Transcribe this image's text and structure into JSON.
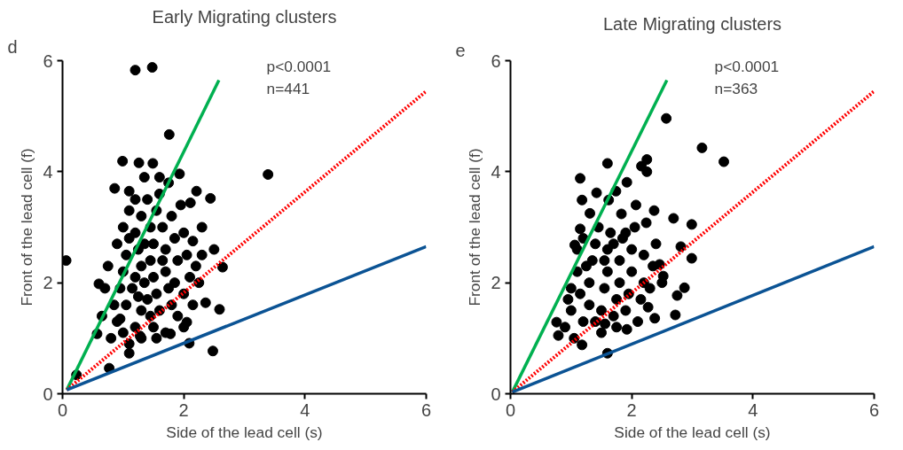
{
  "chart_data": [
    {
      "type": "scatter",
      "title": "Early Migrating clusters",
      "xlabel": "Side of the lead cell (s)",
      "ylabel": "Front of the lead cell (f)",
      "annotations": [
        "d",
        "p<0.0001",
        "n=441"
      ],
      "xlim": [
        0,
        6
      ],
      "ylim": [
        0,
        6
      ],
      "xticks": [
        0,
        2,
        4,
        6
      ],
      "yticks": [
        0,
        2,
        4,
        6
      ],
      "grid": false,
      "series": [
        {
          "color": "#000000",
          "marker": "circle",
          "x": [
            1.2,
            1.48,
            1.76,
            3.39,
            0.99,
            1.26,
            1.49,
            1.93,
            0.86,
            2.21,
            2.44,
            2.11,
            0.06,
            2.64,
            2.5,
            2.36,
            2.59,
            2.48,
            2.09,
            0.77,
            0.6,
            0.23,
            1.55,
            1.28,
            1.78,
            1.1,
            2.05,
            0.57,
            0.8,
            0.9,
            1.0,
            1.1,
            1.2,
            1.3,
            0.85,
            0.95,
            1.0,
            1.05,
            1.1,
            1.0,
            1.1,
            1.2,
            1.3,
            1.2,
            1.25,
            1.3,
            1.35,
            1.4,
            1.45,
            1.5,
            1.6,
            1.55,
            1.5,
            1.45,
            1.5,
            1.45,
            1.55,
            1.6,
            1.65,
            1.7,
            1.7,
            1.75,
            1.8,
            1.9,
            1.85,
            1.9,
            1.85,
            1.8,
            1.95,
            2.0,
            2.05,
            2.1,
            2.0,
            2.15,
            2.2,
            2.3,
            2.25,
            2.3,
            1.15,
            1.2,
            1.35,
            1.4,
            0.9,
            0.75,
            0.7,
            0.65,
            1.05,
            1.3,
            1.7,
            2.0,
            1.6,
            1.75,
            1.35,
            1.1,
            2.15,
            1.65,
            1.25,
            0.95
          ],
          "values": [
            5.83,
            5.88,
            4.67,
            3.95,
            4.19,
            4.16,
            4.15,
            3.96,
            3.7,
            3.65,
            3.52,
            3.44,
            2.4,
            2.28,
            2.6,
            1.64,
            1.52,
            0.77,
            0.91,
            0.46,
            1.98,
            0.34,
            1.0,
            1.04,
            1.08,
            0.73,
            1.29,
            1.08,
            1.0,
            1.3,
            1.1,
            0.9,
            1.2,
            1.5,
            1.6,
            1.9,
            2.2,
            2.5,
            2.8,
            3.0,
            3.3,
            3.5,
            3.2,
            2.9,
            2.6,
            2.3,
            2.0,
            1.7,
            1.4,
            1.2,
            1.5,
            1.8,
            2.1,
            2.4,
            2.7,
            3.0,
            3.3,
            3.6,
            3.0,
            2.6,
            2.2,
            1.9,
            1.6,
            1.4,
            2.0,
            2.4,
            2.8,
            3.2,
            3.4,
            2.9,
            2.5,
            2.1,
            1.8,
            1.6,
            2.3,
            2.5,
            2.0,
            3.0,
            1.9,
            2.1,
            2.7,
            3.5,
            2.7,
            2.3,
            1.9,
            1.4,
            1.6,
            1.0,
            1.1,
            1.2,
            3.9,
            3.8,
            3.9,
            3.65,
            2.75,
            2.4,
            1.75,
            1.35
          ]
        },
        {
          "type": "line",
          "color": "#00b050",
          "line_style": "solid",
          "x": [
            0.07,
            2.58
          ],
          "values": [
            0.07,
            5.65
          ]
        },
        {
          "type": "line",
          "color": "#ff0000",
          "line_style": "dotted",
          "x": [
            0.07,
            6.0
          ],
          "values": [
            0.07,
            5.45
          ]
        },
        {
          "type": "line",
          "color": "#0b5394",
          "line_style": "solid",
          "x": [
            0.07,
            6.0
          ],
          "values": [
            0.07,
            2.65
          ]
        }
      ]
    },
    {
      "type": "scatter",
      "title": "Late Migrating clusters",
      "xlabel": "Side of the lead cell (s)",
      "ylabel": "Front of the lead cell (f)",
      "annotations": [
        "e",
        "p<0.0001",
        "n=363"
      ],
      "xlim": [
        0,
        6
      ],
      "ylim": [
        0,
        6
      ],
      "xticks": [
        0,
        2,
        4,
        6
      ],
      "yticks": [
        0,
        2,
        4,
        6
      ],
      "grid": false,
      "series": [
        {
          "color": "#000000",
          "marker": "circle",
          "x": [
            2.57,
            3.16,
            3.52,
            1.6,
            2.25,
            2.16,
            2.25,
            1.15,
            1.42,
            1.92,
            1.18,
            1.74,
            1.62,
            2.07,
            2.37,
            2.69,
            2.99,
            1.31,
            1.83,
            2.24,
            1.15,
            2.99,
            2.87,
            2.75,
            2.72,
            1.6,
            1.06,
            2.38,
            1.92,
            1.56,
            1.18,
            0.79,
            0.76,
            2.27,
            2.52,
            2.46,
            2.81,
            0.9,
            1.0,
            1.0,
            1.1,
            1.1,
            1.2,
            1.2,
            1.3,
            1.3,
            1.35,
            1.4,
            1.45,
            1.5,
            1.5,
            1.55,
            1.6,
            1.6,
            1.65,
            1.7,
            1.75,
            1.8,
            1.8,
            1.85,
            1.9,
            1.95,
            2.0,
            2.0,
            2.05,
            2.1,
            2.15,
            2.2,
            2.2,
            2.3,
            2.35,
            0.95,
            1.05,
            1.25,
            1.4,
            1.7,
            1.9,
            2.4,
            2.5,
            1.15,
            1.55,
            1.75
          ],
          "values": [
            4.96,
            4.43,
            4.18,
            4.15,
            4.22,
            4.1,
            4.0,
            3.88,
            3.62,
            3.81,
            3.49,
            3.65,
            3.49,
            3.4,
            3.3,
            3.16,
            3.05,
            3.25,
            3.24,
            3.08,
            2.97,
            2.44,
            1.91,
            1.77,
            1.42,
            0.73,
            2.68,
            1.36,
            1.16,
            1.26,
            0.88,
            1.05,
            1.29,
            1.56,
            2.12,
            2.33,
            2.65,
            1.2,
            1.5,
            1.9,
            2.2,
            2.6,
            2.8,
            1.3,
            1.6,
            2.0,
            2.4,
            2.7,
            3.0,
            1.1,
            1.5,
            1.9,
            2.2,
            2.6,
            2.9,
            1.4,
            1.7,
            2.0,
            2.4,
            2.8,
            1.5,
            1.8,
            2.2,
            2.6,
            3.0,
            1.3,
            1.7,
            2.0,
            2.5,
            1.9,
            2.3,
            1.7,
            1.0,
            2.3,
            1.3,
            2.7,
            2.9,
            2.7,
            2.0,
            1.8,
            2.4,
            1.2
          ]
        },
        {
          "type": "line",
          "color": "#00b050",
          "line_style": "solid",
          "x": [
            0.03,
            2.58
          ],
          "values": [
            0.03,
            5.65
          ]
        },
        {
          "type": "line",
          "color": "#ff0000",
          "line_style": "dotted",
          "x": [
            0.03,
            6.0
          ],
          "values": [
            0.03,
            5.45
          ]
        },
        {
          "type": "line",
          "color": "#0b5394",
          "line_style": "solid",
          "x": [
            0.03,
            6.0
          ],
          "values": [
            0.03,
            2.65
          ]
        }
      ]
    }
  ]
}
